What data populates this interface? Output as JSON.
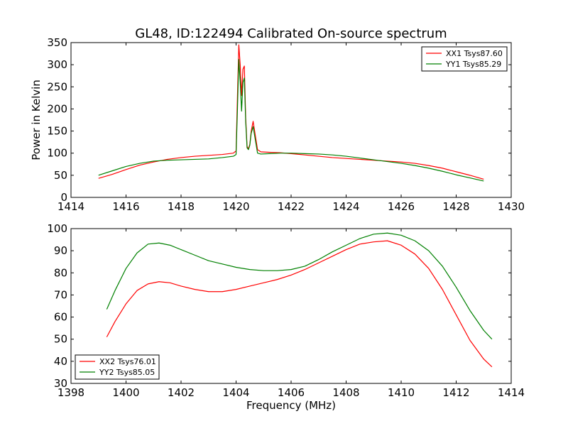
{
  "figure_title": "GL48, ID:122494 Calibrated On-source spectrum",
  "chart_data": [
    {
      "type": "line",
      "xlabel": "",
      "ylabel": "Power in Kelvin",
      "xlim": [
        1414,
        1430
      ],
      "ylim": [
        0,
        350
      ],
      "xticks": [
        1414,
        1416,
        1418,
        1420,
        1422,
        1424,
        1426,
        1428,
        1430
      ],
      "yticks": [
        0,
        50,
        100,
        150,
        200,
        250,
        300,
        350
      ],
      "legend_position": "top-right",
      "grid": false,
      "series": [
        {
          "name": "XX1 Tsys87.60",
          "color": "#ff0000",
          "x": [
            1415.0,
            1415.5,
            1416.0,
            1416.5,
            1417.0,
            1417.5,
            1418.0,
            1418.5,
            1419.0,
            1419.5,
            1419.9,
            1420.0,
            1420.05,
            1420.1,
            1420.15,
            1420.2,
            1420.25,
            1420.3,
            1420.35,
            1420.4,
            1420.45,
            1420.5,
            1420.55,
            1420.62,
            1420.7,
            1420.78,
            1420.9,
            1421.2,
            1421.6,
            1422.0,
            1422.5,
            1423.0,
            1423.5,
            1424.0,
            1424.5,
            1425.0,
            1425.5,
            1426.0,
            1426.5,
            1427.0,
            1427.5,
            1428.0,
            1428.5,
            1429.0
          ],
          "y": [
            43,
            52,
            63,
            73,
            80,
            86,
            90,
            93,
            95,
            97,
            100,
            105,
            230,
            345,
            300,
            230,
            290,
            297,
            180,
            115,
            110,
            120,
            150,
            172,
            140,
            108,
            103,
            102,
            101,
            99,
            96,
            93,
            90,
            88,
            86,
            84,
            82,
            80,
            77,
            72,
            66,
            58,
            50,
            41
          ]
        },
        {
          "name": "YY1 Tsys85.29",
          "color": "#008000",
          "x": [
            1415.0,
            1415.5,
            1416.0,
            1416.5,
            1417.0,
            1417.5,
            1418.0,
            1418.5,
            1419.0,
            1419.5,
            1419.9,
            1420.0,
            1420.05,
            1420.1,
            1420.15,
            1420.2,
            1420.25,
            1420.3,
            1420.35,
            1420.4,
            1420.45,
            1420.5,
            1420.55,
            1420.62,
            1420.7,
            1420.78,
            1420.9,
            1421.2,
            1421.6,
            1422.0,
            1422.5,
            1423.0,
            1423.5,
            1424.0,
            1424.5,
            1425.0,
            1425.5,
            1426.0,
            1426.5,
            1427.0,
            1427.5,
            1428.0,
            1428.5,
            1429.0
          ],
          "y": [
            50,
            60,
            70,
            77,
            82,
            84,
            85,
            86,
            87,
            90,
            93,
            97,
            200,
            312,
            260,
            195,
            260,
            270,
            170,
            112,
            108,
            118,
            145,
            160,
            130,
            100,
            98,
            99,
            100,
            100,
            99,
            98,
            96,
            93,
            89,
            85,
            81,
            77,
            72,
            66,
            59,
            51,
            44,
            37
          ]
        }
      ]
    },
    {
      "type": "line",
      "xlabel": "Frequency (MHz)",
      "ylabel": "",
      "xlim": [
        1398,
        1414
      ],
      "ylim": [
        30,
        100
      ],
      "xticks": [
        1398,
        1400,
        1402,
        1404,
        1406,
        1408,
        1410,
        1412,
        1414
      ],
      "yticks": [
        30,
        40,
        50,
        60,
        70,
        80,
        90,
        100
      ],
      "legend_position": "bottom-left",
      "grid": false,
      "series": [
        {
          "name": "XX2 Tsys76.01",
          "color": "#ff0000",
          "x": [
            1399.3,
            1399.6,
            1400.0,
            1400.4,
            1400.8,
            1401.2,
            1401.6,
            1402.0,
            1402.5,
            1403.0,
            1403.5,
            1404.0,
            1404.5,
            1405.0,
            1405.5,
            1406.0,
            1406.5,
            1407.0,
            1407.5,
            1408.0,
            1408.5,
            1409.0,
            1409.5,
            1410.0,
            1410.5,
            1411.0,
            1411.5,
            1412.0,
            1412.5,
            1413.0,
            1413.3
          ],
          "y": [
            51,
            58,
            66,
            72,
            75,
            76,
            75.5,
            74,
            72.5,
            71.5,
            71.5,
            72.5,
            74,
            75.5,
            77,
            79,
            81.5,
            84.5,
            87.5,
            90.5,
            93,
            94,
            94.5,
            92.5,
            88.5,
            82,
            72.5,
            61,
            49.5,
            41,
            37.5
          ]
        },
        {
          "name": "YY2 Tsys85.05",
          "color": "#008000",
          "x": [
            1399.3,
            1399.6,
            1400.0,
            1400.4,
            1400.8,
            1401.2,
            1401.6,
            1402.0,
            1402.5,
            1403.0,
            1403.5,
            1404.0,
            1404.5,
            1405.0,
            1405.5,
            1406.0,
            1406.5,
            1407.0,
            1407.5,
            1408.0,
            1408.5,
            1409.0,
            1409.5,
            1410.0,
            1410.5,
            1411.0,
            1411.5,
            1412.0,
            1412.5,
            1413.0,
            1413.3
          ],
          "y": [
            63.5,
            72,
            82,
            89,
            93,
            93.5,
            92.5,
            90.5,
            88,
            85.5,
            84,
            82.5,
            81.5,
            81,
            81,
            81.5,
            83,
            86,
            89.5,
            92.5,
            95.5,
            97.5,
            98,
            97,
            94.5,
            90,
            83,
            73.5,
            63,
            54,
            50
          ]
        }
      ]
    }
  ]
}
